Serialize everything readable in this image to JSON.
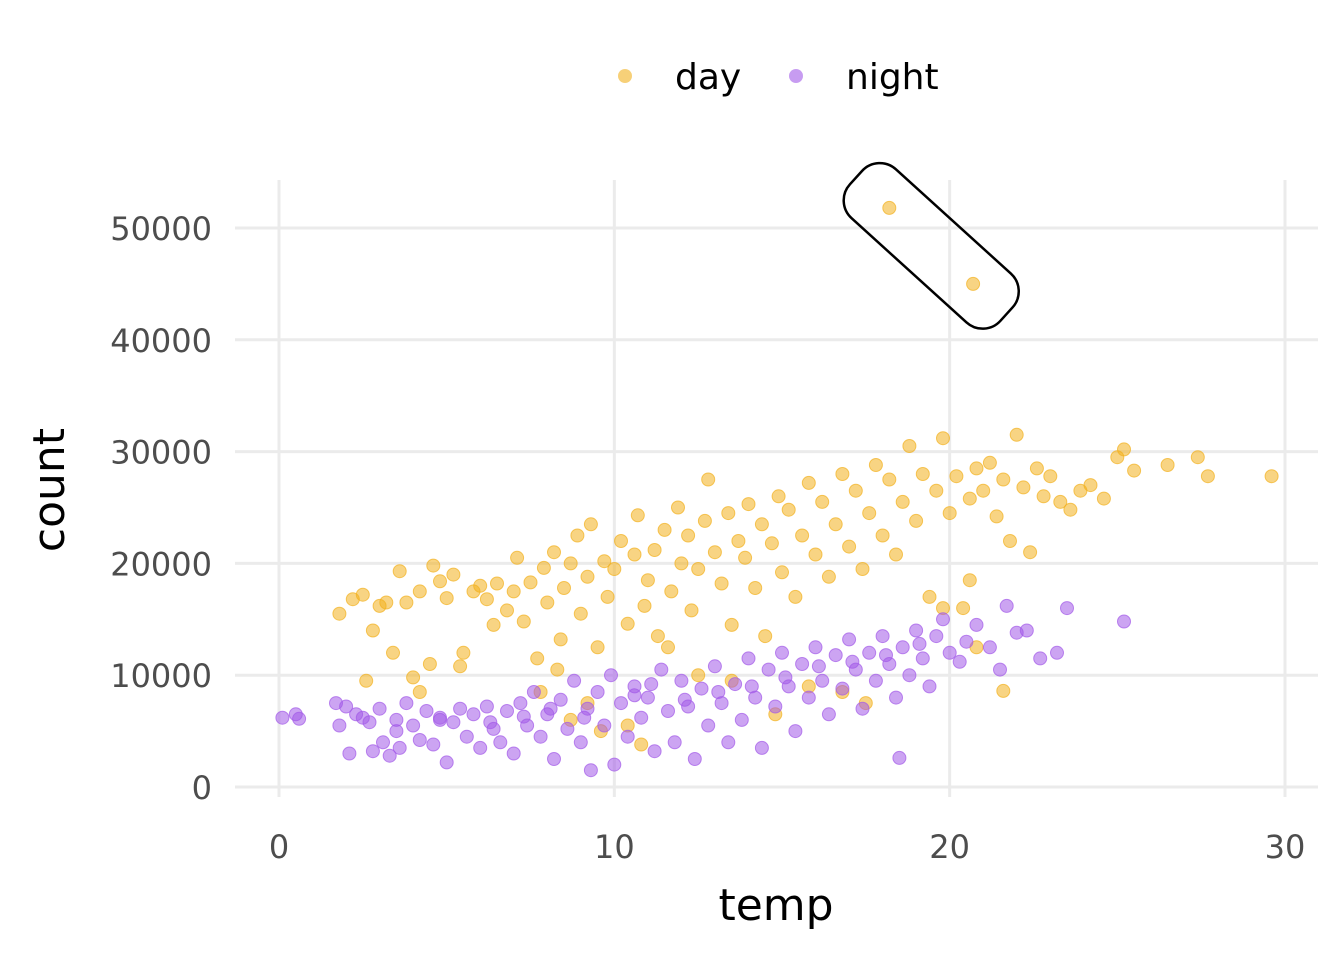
{
  "colors": {
    "day": "#F2B01E",
    "night": "#A25AE8"
  },
  "chart_data": {
    "type": "scatter",
    "xlabel": "temp",
    "ylabel": "count",
    "xlim": [
      0,
      30
    ],
    "ylim": [
      0,
      54000
    ],
    "x_ticks": [
      "0",
      "10",
      "20",
      "30"
    ],
    "y_ticks": [
      "0",
      "10000",
      "20000",
      "30000",
      "40000",
      "50000"
    ],
    "grid": true,
    "legend": {
      "position": "top",
      "entries": [
        "day",
        "night"
      ]
    },
    "annotation": {
      "type": "outline",
      "encloses_points": [
        [
          18.2,
          51800
        ],
        [
          20.7,
          45000
        ]
      ]
    },
    "series": [
      {
        "name": "day",
        "color": "#F2B01E",
        "points": [
          [
            1.8,
            15500
          ],
          [
            2.2,
            16800
          ],
          [
            2.5,
            17200
          ],
          [
            2.6,
            9500
          ],
          [
            2.8,
            14000
          ],
          [
            3.0,
            16200
          ],
          [
            3.2,
            16500
          ],
          [
            3.4,
            12000
          ],
          [
            3.6,
            19300
          ],
          [
            3.8,
            16500
          ],
          [
            4.0,
            9800
          ],
          [
            4.2,
            17500
          ],
          [
            4.5,
            11000
          ],
          [
            4.6,
            19800
          ],
          [
            4.8,
            18400
          ],
          [
            5.0,
            16900
          ],
          [
            5.2,
            19000
          ],
          [
            5.5,
            12000
          ],
          [
            5.8,
            17500
          ],
          [
            6.0,
            18000
          ],
          [
            6.2,
            16800
          ],
          [
            6.4,
            14500
          ],
          [
            6.5,
            18200
          ],
          [
            6.8,
            15800
          ],
          [
            7.0,
            17500
          ],
          [
            7.1,
            20500
          ],
          [
            7.3,
            14800
          ],
          [
            7.5,
            18300
          ],
          [
            7.7,
            11500
          ],
          [
            7.9,
            19600
          ],
          [
            8.0,
            16500
          ],
          [
            8.2,
            21000
          ],
          [
            8.4,
            13200
          ],
          [
            8.5,
            17800
          ],
          [
            8.7,
            20000
          ],
          [
            8.9,
            22500
          ],
          [
            9.0,
            15500
          ],
          [
            9.2,
            18800
          ],
          [
            9.3,
            23500
          ],
          [
            9.5,
            12500
          ],
          [
            9.7,
            20200
          ],
          [
            9.8,
            17000
          ],
          [
            10.0,
            19500
          ],
          [
            10.2,
            22000
          ],
          [
            10.4,
            14600
          ],
          [
            10.6,
            20800
          ],
          [
            10.7,
            24300
          ],
          [
            10.9,
            16200
          ],
          [
            11.0,
            18500
          ],
          [
            11.2,
            21200
          ],
          [
            11.3,
            13500
          ],
          [
            11.5,
            23000
          ],
          [
            11.7,
            17500
          ],
          [
            11.9,
            25000
          ],
          [
            12.0,
            20000
          ],
          [
            12.2,
            22500
          ],
          [
            12.3,
            15800
          ],
          [
            12.5,
            19500
          ],
          [
            12.7,
            23800
          ],
          [
            12.8,
            27500
          ],
          [
            13.0,
            21000
          ],
          [
            13.2,
            18200
          ],
          [
            13.4,
            24500
          ],
          [
            13.5,
            14500
          ],
          [
            13.7,
            22000
          ],
          [
            13.9,
            20500
          ],
          [
            14.0,
            25300
          ],
          [
            14.2,
            17800
          ],
          [
            14.4,
            23500
          ],
          [
            14.5,
            13500
          ],
          [
            14.7,
            21800
          ],
          [
            14.9,
            26000
          ],
          [
            15.0,
            19200
          ],
          [
            15.2,
            24800
          ],
          [
            15.4,
            17000
          ],
          [
            15.6,
            22500
          ],
          [
            15.8,
            27200
          ],
          [
            16.0,
            20800
          ],
          [
            16.2,
            25500
          ],
          [
            16.4,
            18800
          ],
          [
            16.6,
            23500
          ],
          [
            16.8,
            28000
          ],
          [
            17.0,
            21500
          ],
          [
            17.2,
            26500
          ],
          [
            17.4,
            19500
          ],
          [
            17.6,
            24500
          ],
          [
            17.8,
            28800
          ],
          [
            18.0,
            22500
          ],
          [
            18.2,
            27500
          ],
          [
            18.4,
            20800
          ],
          [
            18.6,
            25500
          ],
          [
            18.8,
            30500
          ],
          [
            19.0,
            23800
          ],
          [
            19.2,
            28000
          ],
          [
            19.4,
            17000
          ],
          [
            19.6,
            26500
          ],
          [
            19.8,
            31200
          ],
          [
            20.0,
            24500
          ],
          [
            20.2,
            27800
          ],
          [
            20.4,
            16000
          ],
          [
            20.6,
            25800
          ],
          [
            20.8,
            28500
          ],
          [
            21.0,
            26500
          ],
          [
            21.2,
            29000
          ],
          [
            21.4,
            24200
          ],
          [
            21.6,
            27500
          ],
          [
            21.8,
            22000
          ],
          [
            22.0,
            31500
          ],
          [
            22.2,
            26800
          ],
          [
            22.4,
            21000
          ],
          [
            22.6,
            28500
          ],
          [
            22.8,
            26000
          ],
          [
            23.0,
            27800
          ],
          [
            23.3,
            25500
          ],
          [
            23.6,
            24800
          ],
          [
            23.9,
            26500
          ],
          [
            24.2,
            27000
          ],
          [
            24.6,
            25800
          ],
          [
            25.0,
            29500
          ],
          [
            25.2,
            30200
          ],
          [
            25.5,
            28300
          ],
          [
            26.5,
            28800
          ],
          [
            27.4,
            29500
          ],
          [
            27.7,
            27800
          ],
          [
            29.6,
            27800
          ],
          [
            18.2,
            51800
          ],
          [
            20.7,
            45000
          ],
          [
            21.6,
            8600
          ],
          [
            20.6,
            18500
          ],
          [
            19.8,
            16000
          ],
          [
            20.8,
            12500
          ],
          [
            9.6,
            5000
          ],
          [
            9.2,
            7500
          ],
          [
            7.8,
            8500
          ],
          [
            5.4,
            10800
          ],
          [
            4.2,
            8500
          ],
          [
            8.3,
            10500
          ],
          [
            8.7,
            6000
          ],
          [
            10.4,
            5500
          ],
          [
            10.8,
            3800
          ],
          [
            11.6,
            12500
          ],
          [
            12.5,
            10000
          ],
          [
            13.5,
            9500
          ],
          [
            14.8,
            6500
          ],
          [
            15.8,
            9000
          ],
          [
            16.8,
            8500
          ],
          [
            17.5,
            7500
          ]
        ]
      },
      {
        "name": "night",
        "color": "#A25AE8",
        "points": [
          [
            0.1,
            6200
          ],
          [
            0.5,
            6500
          ],
          [
            0.6,
            6100
          ],
          [
            1.7,
            7500
          ],
          [
            1.8,
            5500
          ],
          [
            2.0,
            7200
          ],
          [
            2.1,
            3000
          ],
          [
            2.3,
            6500
          ],
          [
            2.5,
            6200
          ],
          [
            2.7,
            5800
          ],
          [
            2.8,
            3200
          ],
          [
            3.0,
            7000
          ],
          [
            3.1,
            4000
          ],
          [
            3.3,
            2800
          ],
          [
            3.5,
            6000
          ],
          [
            3.6,
            3500
          ],
          [
            3.8,
            7500
          ],
          [
            4.0,
            5500
          ],
          [
            4.2,
            4200
          ],
          [
            4.4,
            6800
          ],
          [
            4.6,
            3800
          ],
          [
            4.8,
            6200
          ],
          [
            5.0,
            2200
          ],
          [
            5.2,
            5800
          ],
          [
            5.4,
            7000
          ],
          [
            5.6,
            4500
          ],
          [
            5.8,
            6500
          ],
          [
            6.0,
            3500
          ],
          [
            6.2,
            7200
          ],
          [
            6.4,
            5200
          ],
          [
            6.6,
            4000
          ],
          [
            6.8,
            6800
          ],
          [
            7.0,
            3000
          ],
          [
            7.2,
            7500
          ],
          [
            7.4,
            5500
          ],
          [
            7.6,
            8500
          ],
          [
            7.8,
            4500
          ],
          [
            8.0,
            6500
          ],
          [
            8.2,
            2500
          ],
          [
            8.4,
            7800
          ],
          [
            8.6,
            5200
          ],
          [
            8.8,
            9500
          ],
          [
            9.0,
            4000
          ],
          [
            9.2,
            7000
          ],
          [
            9.3,
            1500
          ],
          [
            9.5,
            8500
          ],
          [
            9.7,
            5500
          ],
          [
            9.9,
            10000
          ],
          [
            10.0,
            2000
          ],
          [
            10.2,
            7500
          ],
          [
            10.4,
            4500
          ],
          [
            10.6,
            9000
          ],
          [
            10.8,
            6200
          ],
          [
            11.0,
            8000
          ],
          [
            11.2,
            3200
          ],
          [
            11.4,
            10500
          ],
          [
            11.6,
            6800
          ],
          [
            11.8,
            4000
          ],
          [
            12.0,
            9500
          ],
          [
            12.2,
            7200
          ],
          [
            12.4,
            2500
          ],
          [
            12.6,
            8800
          ],
          [
            12.8,
            5500
          ],
          [
            13.0,
            10800
          ],
          [
            13.2,
            7500
          ],
          [
            13.4,
            4000
          ],
          [
            13.6,
            9200
          ],
          [
            13.8,
            6000
          ],
          [
            14.0,
            11500
          ],
          [
            14.2,
            8000
          ],
          [
            14.4,
            3500
          ],
          [
            14.6,
            10500
          ],
          [
            14.8,
            7200
          ],
          [
            15.0,
            12000
          ],
          [
            15.2,
            9000
          ],
          [
            15.4,
            5000
          ],
          [
            15.6,
            11000
          ],
          [
            15.8,
            8000
          ],
          [
            16.0,
            12500
          ],
          [
            16.2,
            9500
          ],
          [
            16.4,
            6500
          ],
          [
            16.6,
            11800
          ],
          [
            16.8,
            8800
          ],
          [
            17.0,
            13200
          ],
          [
            17.2,
            10500
          ],
          [
            17.4,
            7000
          ],
          [
            17.6,
            12000
          ],
          [
            17.8,
            9500
          ],
          [
            18.0,
            13500
          ],
          [
            18.2,
            11000
          ],
          [
            18.4,
            8000
          ],
          [
            18.5,
            2600
          ],
          [
            18.6,
            12500
          ],
          [
            18.8,
            10000
          ],
          [
            19.0,
            14000
          ],
          [
            19.2,
            11500
          ],
          [
            19.4,
            9000
          ],
          [
            19.6,
            13500
          ],
          [
            19.8,
            15000
          ],
          [
            20.0,
            12000
          ],
          [
            20.3,
            11200
          ],
          [
            20.5,
            13000
          ],
          [
            20.8,
            14500
          ],
          [
            21.2,
            12500
          ],
          [
            21.5,
            10500
          ],
          [
            21.7,
            16200
          ],
          [
            22.0,
            13800
          ],
          [
            22.3,
            14000
          ],
          [
            22.7,
            11500
          ],
          [
            23.2,
            12000
          ],
          [
            23.5,
            16000
          ],
          [
            25.2,
            14800
          ],
          [
            3.5,
            5000
          ],
          [
            4.8,
            6000
          ],
          [
            6.3,
            5800
          ],
          [
            7.3,
            6300
          ],
          [
            8.1,
            7000
          ],
          [
            9.1,
            6200
          ],
          [
            10.6,
            8200
          ],
          [
            11.1,
            9200
          ],
          [
            12.1,
            7800
          ],
          [
            13.1,
            8500
          ],
          [
            14.1,
            9000
          ],
          [
            15.1,
            9800
          ],
          [
            16.1,
            10800
          ],
          [
            17.1,
            11200
          ],
          [
            18.1,
            11800
          ],
          [
            19.1,
            12800
          ]
        ]
      }
    ]
  }
}
